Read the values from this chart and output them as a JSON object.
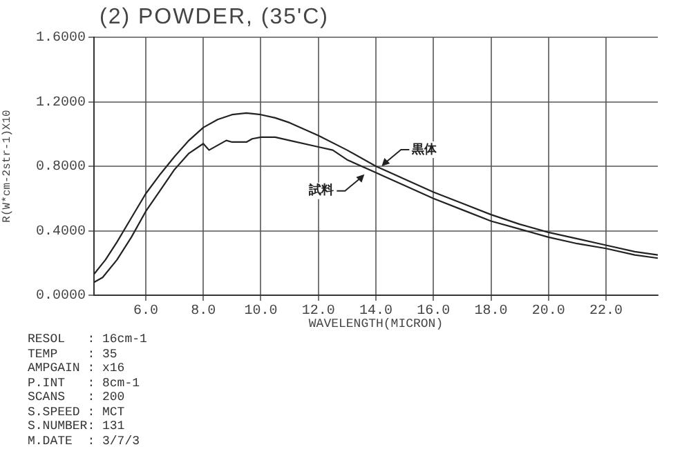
{
  "chart_data": {
    "type": "line",
    "title": "(2) POWDER, (35'C)",
    "xlabel": "WAVELENGTH(MICRON)",
    "ylabel": "R(W*cm-2str-1)X10",
    "xlim": [
      4.2,
      23.8
    ],
    "ylim": [
      0,
      1.6
    ],
    "xticks": [
      {
        "value": 6,
        "label": "6.0"
      },
      {
        "value": 8,
        "label": "8.0"
      },
      {
        "value": 10,
        "label": "10.0"
      },
      {
        "value": 12,
        "label": "12.0"
      },
      {
        "value": 14,
        "label": "14.0"
      },
      {
        "value": 16,
        "label": "16.0"
      },
      {
        "value": 18,
        "label": "18.0"
      },
      {
        "value": 20,
        "label": "20.0"
      },
      {
        "value": 22,
        "label": "22.0"
      }
    ],
    "yticks": [
      {
        "value": 0,
        "label": "0.0000"
      },
      {
        "value": 0.4,
        "label": "0.4000"
      },
      {
        "value": 0.8,
        "label": "0.8000"
      },
      {
        "value": 1.2,
        "label": "1.2000"
      },
      {
        "value": 1.6,
        "label": "1.6000"
      }
    ],
    "grid": true,
    "legend": false,
    "marker": "none",
    "line_style": "solid",
    "series": [
      {
        "color": "#222222",
        "x": [
          4.2,
          4.6,
          5,
          5.5,
          6,
          6.5,
          7,
          7.5,
          8,
          8.5,
          9,
          9.5,
          10,
          10.5,
          11,
          12,
          13,
          14,
          15,
          16,
          17,
          18,
          19,
          20,
          21,
          22,
          23,
          23.8
        ],
        "values": [
          0.13,
          0.22,
          0.33,
          0.48,
          0.63,
          0.75,
          0.86,
          0.96,
          1.04,
          1.09,
          1.12,
          1.13,
          1.12,
          1.1,
          1.07,
          0.99,
          0.9,
          0.8,
          0.72,
          0.64,
          0.57,
          0.5,
          0.44,
          0.39,
          0.35,
          0.31,
          0.27,
          0.25
        ]
      },
      {
        "color": "#222222",
        "x": [
          4.2,
          4.5,
          5,
          5.5,
          6,
          6.5,
          7,
          7.5,
          8,
          8.2,
          8.5,
          8.8,
          9,
          9.5,
          9.7,
          10,
          10.5,
          11,
          12,
          12.5,
          13,
          14,
          15,
          16,
          17,
          18,
          19,
          20,
          21,
          22,
          23,
          23.8
        ],
        "values": [
          0.08,
          0.11,
          0.22,
          0.36,
          0.52,
          0.65,
          0.78,
          0.88,
          0.94,
          0.9,
          0.93,
          0.96,
          0.95,
          0.95,
          0.97,
          0.98,
          0.98,
          0.96,
          0.92,
          0.9,
          0.84,
          0.76,
          0.68,
          0.6,
          0.53,
          0.46,
          0.41,
          0.36,
          0.32,
          0.29,
          0.25,
          0.23
        ]
      }
    ],
    "annotations": [
      {
        "text": "黒体",
        "x": 14.2,
        "y": 0.8
      },
      {
        "text": "試料",
        "x": 13.6,
        "y": 0.75
      },
      "RESOL   : 16cm-1",
      "TEMP    : 35",
      "AMPGAIN : x16",
      "P.INT   : 8cm-1",
      "SCANS   : 200",
      "S.SPEED : MCT",
      "S.NUMBER: 131",
      "M.DATE  : 3/7/3"
    ]
  }
}
